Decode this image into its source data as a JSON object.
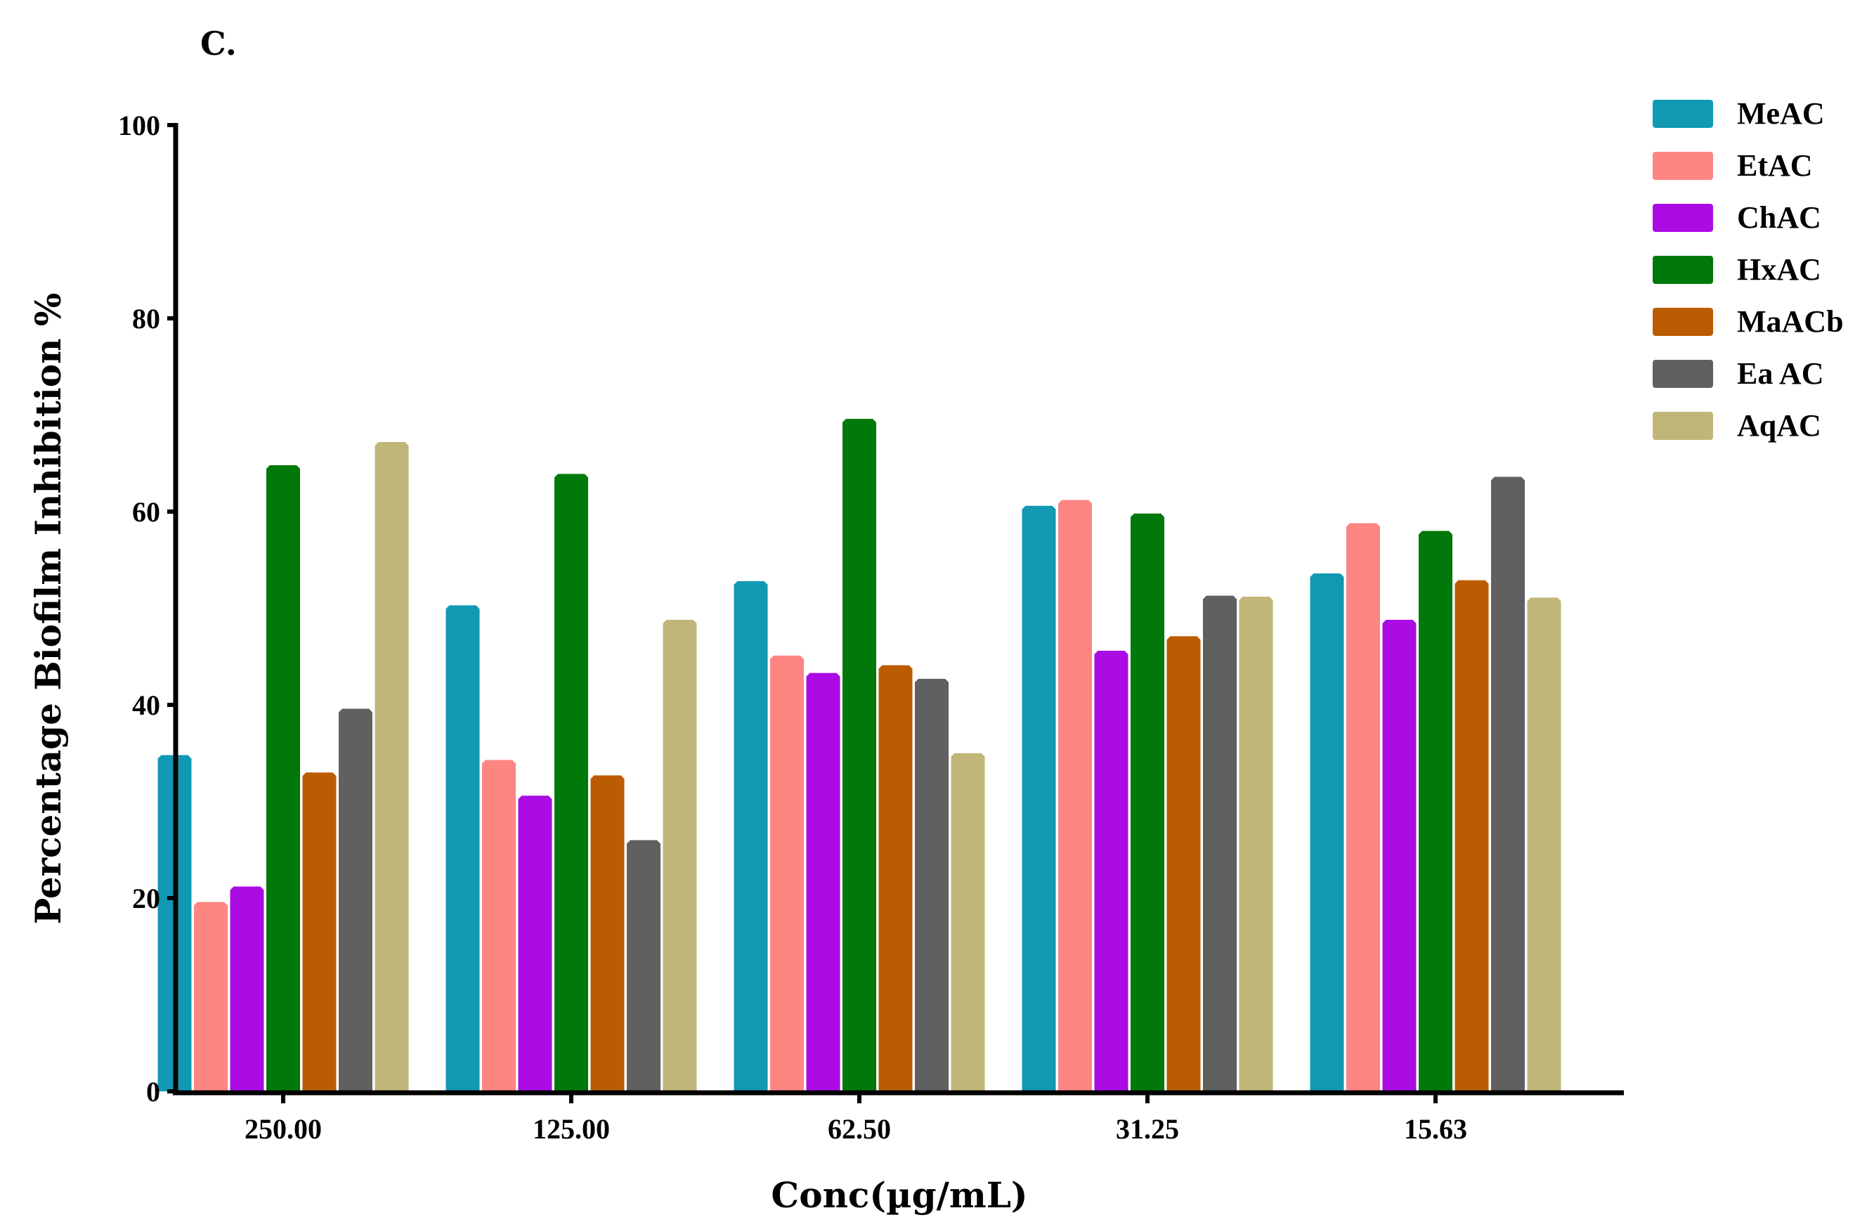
{
  "chart_data": {
    "type": "bar",
    "panel_label": "C.",
    "categories": [
      "250.00",
      "125.00",
      "62.50",
      "31.25",
      "15.63"
    ],
    "series": [
      {
        "name": "MeAC",
        "color": "#1199b4",
        "values": [
          34.8,
          50.3,
          52.8,
          60.6,
          53.6
        ]
      },
      {
        "name": "EtAC",
        "color": "#fd8582",
        "values": [
          19.6,
          34.3,
          45.1,
          61.2,
          58.8
        ]
      },
      {
        "name": "ChAC",
        "color": "#ab0ce4",
        "values": [
          21.2,
          30.6,
          43.3,
          45.6,
          48.8
        ]
      },
      {
        "name": "HxAC",
        "color": "#00780a",
        "values": [
          64.8,
          63.9,
          69.6,
          59.8,
          58.0
        ]
      },
      {
        "name": "MaACb",
        "color": "#bb5c03",
        "values": [
          33.0,
          32.7,
          44.1,
          47.1,
          52.9
        ]
      },
      {
        "name": "Ea AC",
        "color": "#606060",
        "values": [
          39.6,
          26.0,
          42.7,
          51.3,
          63.6
        ]
      },
      {
        "name": "AqAC",
        "color": "#c1b67a",
        "values": [
          67.2,
          48.8,
          35.0,
          51.2,
          51.1
        ]
      }
    ],
    "title": "",
    "xlabel": "Conc(µg/mL)",
    "ylabel": "Percentage Biofilm Inhibition %",
    "ylim": [
      0,
      100
    ],
    "yticks": [
      0,
      20,
      40,
      60,
      80,
      100
    ],
    "ytick_labels": [
      "0",
      "20",
      "40",
      "60",
      "80",
      "100"
    ],
    "grid": false,
    "legend_position": "top-right"
  }
}
